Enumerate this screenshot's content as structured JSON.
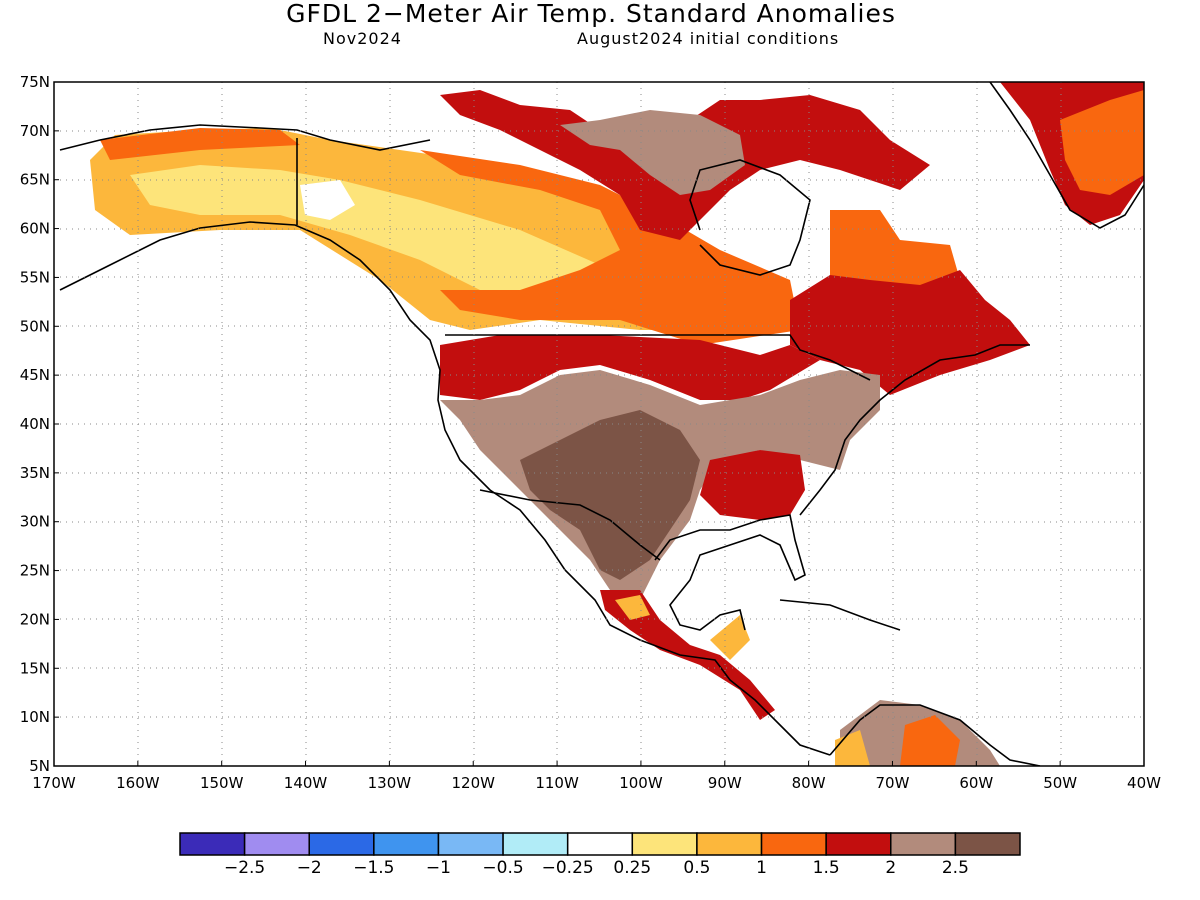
{
  "map": {
    "title": "GFDL 2−Meter Air Temp. Standard Anomalies",
    "valid_month": "Nov2024",
    "initial_conditions": "August2024 initial conditions",
    "extent": {
      "lon": [
        -170,
        -40
      ],
      "lat": [
        5,
        75
      ]
    },
    "lat_ticks": [
      "75N",
      "70N",
      "65N",
      "60N",
      "55N",
      "50N",
      "45N",
      "40N",
      "35N",
      "30N",
      "25N",
      "20N",
      "15N",
      "10N",
      "5N"
    ],
    "lon_ticks": [
      "170W",
      "160W",
      "150W",
      "140W",
      "130W",
      "120W",
      "110W",
      "100W",
      "90W",
      "80W",
      "70W",
      "60W",
      "50W",
      "40W"
    ],
    "grid": "dotted",
    "outline_color": "#000000"
  },
  "colorbar": {
    "labels": [
      "−2.5",
      "−2",
      "−1.5",
      "−1",
      "−0.5",
      "−0.25",
      "0.25",
      "0.5",
      "1",
      "1.5",
      "2",
      "2.5"
    ],
    "colors": [
      "#3b2bb8",
      "#a08cf0",
      "#2b69e6",
      "#3f94ef",
      "#79b8f5",
      "#b1ecf7",
      "#ffffff",
      "#fde47a",
      "#fcb73c",
      "#f9670f",
      "#c20e0e",
      "#b28b7c",
      "#7c5446"
    ]
  }
}
